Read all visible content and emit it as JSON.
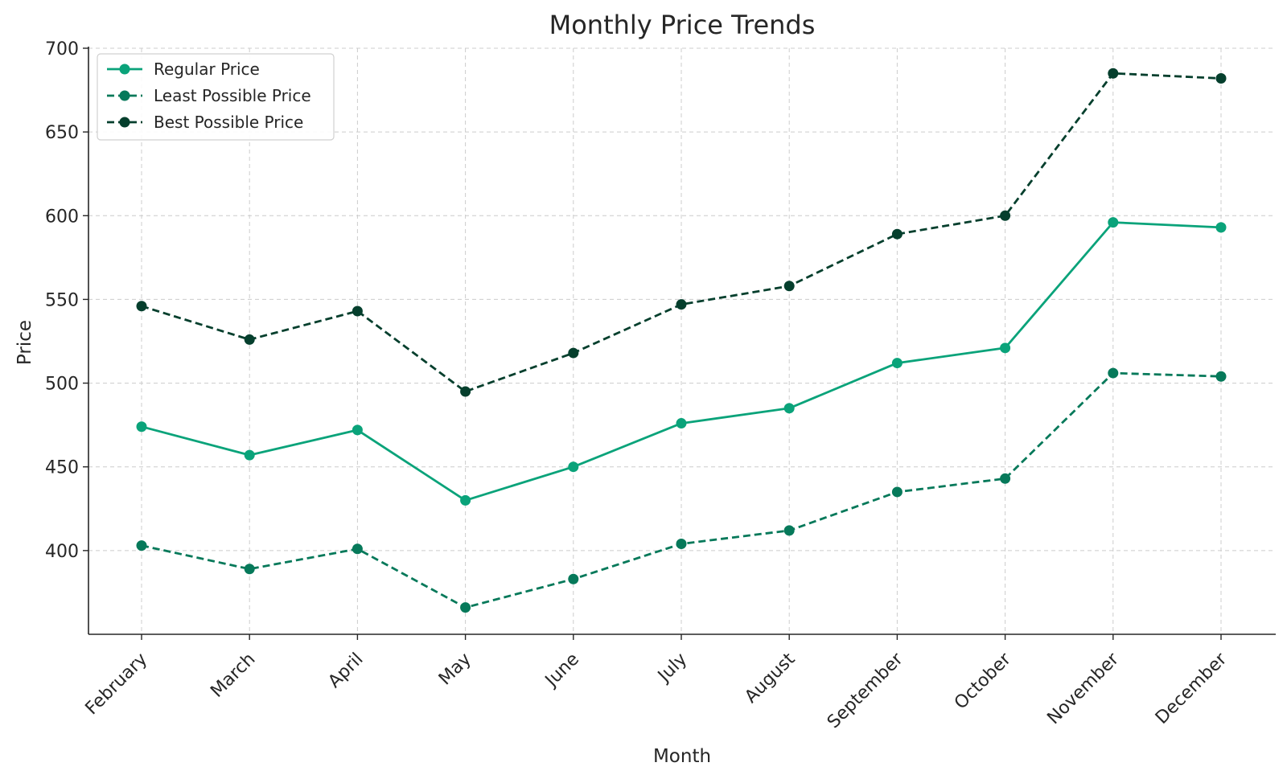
{
  "chart_data": {
    "type": "line",
    "title": "Monthly Price Trends",
    "xlabel": "Month",
    "ylabel": "Price",
    "categories": [
      "February",
      "March",
      "April",
      "May",
      "June",
      "July",
      "August",
      "September",
      "October",
      "November",
      "December"
    ],
    "ylim": [
      350,
      700
    ],
    "yticks": [
      400,
      450,
      500,
      550,
      600,
      650,
      700
    ],
    "grid": true,
    "legend_position": "top-left",
    "series": [
      {
        "name": "Regular Price",
        "values": [
          474,
          457,
          472,
          430,
          450,
          476,
          485,
          512,
          521,
          596,
          593
        ],
        "color": "#0aa37a",
        "line_style": "solid"
      },
      {
        "name": "Least Possible Price",
        "values": [
          403,
          389,
          401,
          366,
          383,
          404,
          412,
          435,
          443,
          506,
          504
        ],
        "color": "#06795a",
        "line_style": "dashed"
      },
      {
        "name": "Best Possible Price",
        "values": [
          546,
          526,
          543,
          495,
          518,
          547,
          558,
          589,
          600,
          685,
          682
        ],
        "color": "#053f2d",
        "line_style": "dashed"
      }
    ]
  }
}
